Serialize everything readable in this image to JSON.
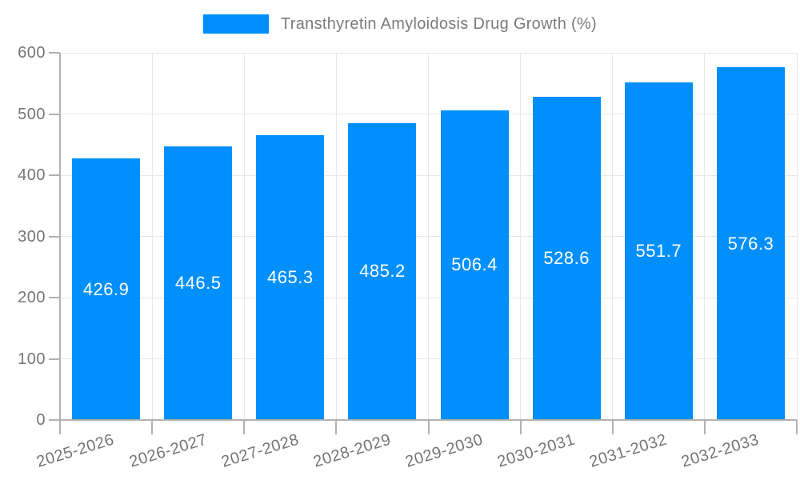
{
  "chart_data": {
    "type": "bar",
    "title": "Transthyretin Amyloidosis Drug Growth (%)",
    "categories": [
      "2025-2026",
      "2026-2027",
      "2027-2028",
      "2028-2029",
      "2029-2030",
      "2030-2031",
      "2031-2032",
      "2032-2033"
    ],
    "values": [
      426.9,
      446.5,
      465.3,
      485.2,
      506.4,
      528.6,
      551.7,
      576.3
    ],
    "value_labels": [
      "426.9",
      "446.5",
      "465.3",
      "485.2",
      "506.4",
      "528.6",
      "551.7",
      "576.3"
    ],
    "xlabel": "",
    "ylabel": "",
    "ylim": [
      0,
      600
    ],
    "yticks": [
      0,
      100,
      200,
      300,
      400,
      500,
      600
    ],
    "grid": true,
    "legend_position": "top-center",
    "colors": {
      "bar": "#008FFB",
      "bar_value_label": "#ffffff",
      "grid": "#e7e7e7",
      "axis_line": "#b1b1b1",
      "axis_text": "#757575",
      "legend_text": "#7b7b7b",
      "background": "#ffffff"
    }
  }
}
